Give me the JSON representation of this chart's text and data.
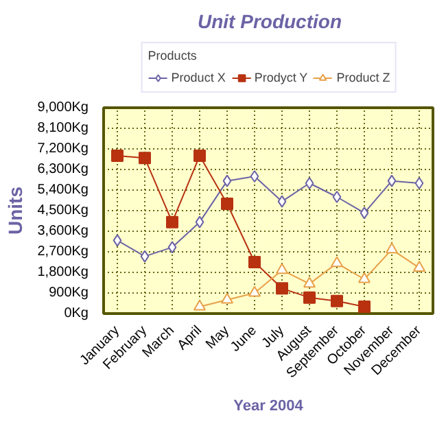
{
  "chart_data": {
    "type": "line",
    "title": "Unit Production",
    "xlabel": "Year 2004",
    "ylabel": "Units",
    "legend_title": "Products",
    "categories": [
      "January",
      "February",
      "March",
      "April",
      "May",
      "June",
      "July",
      "August",
      "September",
      "October",
      "November",
      "December"
    ],
    "series": [
      {
        "name": "Product X",
        "color": "#6b63a5",
        "marker": "diamond",
        "values": [
          3200,
          2500,
          2900,
          4000,
          5800,
          6000,
          4900,
          5700,
          5100,
          4400,
          5800,
          5700
        ]
      },
      {
        "name": "Prodyct Y",
        "color": "#b83210",
        "marker": "square",
        "values": [
          6900,
          6800,
          4000,
          6900,
          4800,
          2250,
          1100,
          700,
          550,
          300,
          null,
          null
        ]
      },
      {
        "name": "Product Z",
        "color": "#e8a048",
        "marker": "triangle",
        "values": [
          null,
          null,
          null,
          300,
          600,
          900,
          1900,
          1300,
          2200,
          1500,
          2800,
          2000
        ]
      }
    ],
    "ylim": [
      0,
      9000
    ],
    "yticks": [
      {
        "value": 0,
        "label": "0Kg"
      },
      {
        "value": 900,
        "label": "900Kg"
      },
      {
        "value": 1800,
        "label": "1,800Kg"
      },
      {
        "value": 2700,
        "label": "2,700Kg"
      },
      {
        "value": 3600,
        "label": "3,600Kg"
      },
      {
        "value": 4500,
        "label": "4,500Kg"
      },
      {
        "value": 5400,
        "label": "5,400Kg"
      },
      {
        "value": 6300,
        "label": "6,300Kg"
      },
      {
        "value": 7200,
        "label": "7,200Kg"
      },
      {
        "value": 8100,
        "label": "8,100Kg"
      },
      {
        "value": 9000,
        "label": "9,000Kg"
      }
    ],
    "grid": true,
    "legend": "top",
    "line_style": "solid"
  }
}
